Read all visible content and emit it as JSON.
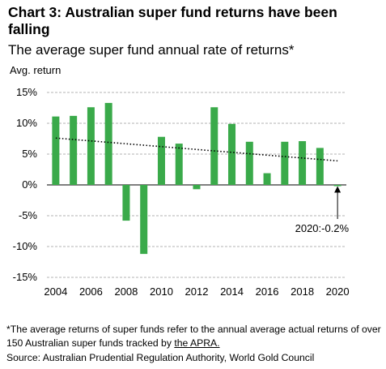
{
  "header": {
    "title": "Chart 3: Australian super fund returns have been falling",
    "subtitle": "The average super fund annual rate of returns*"
  },
  "footer": {
    "note_prefix": "*The average returns of super funds refer to the annual average actual returns of over 150 Australian super funds tracked by ",
    "note_link": "the APRA.",
    "source": "Source: Australian Prudential Regulation Authority, World Gold Council"
  },
  "chart_data": {
    "type": "bar",
    "ylabel": "Avg. return",
    "xlabel": "",
    "categories": [
      "2004",
      "2005",
      "2006",
      "2007",
      "2008",
      "2009",
      "2010",
      "2011",
      "2012",
      "2013",
      "2014",
      "2015",
      "2016",
      "2017",
      "2018",
      "2019",
      "2020"
    ],
    "values": [
      11.1,
      11.2,
      12.6,
      13.3,
      -5.8,
      -11.2,
      7.8,
      6.7,
      -0.7,
      12.6,
      9.9,
      7.0,
      1.9,
      7.0,
      7.1,
      6.0,
      -0.2
    ],
    "ylim": [
      -15,
      15
    ],
    "yticks": [
      15,
      10,
      5,
      0,
      -5,
      -10,
      -15
    ],
    "ytick_labels": [
      "15%",
      "10%",
      "5%",
      "0%",
      "-5%",
      "-10%",
      "-15%"
    ],
    "xtick_labels": [
      "2004",
      "2006",
      "2008",
      "2010",
      "2012",
      "2014",
      "2016",
      "2018",
      "2020"
    ],
    "trendline": {
      "style": "dotted",
      "start": 7.6,
      "end": 3.9
    },
    "grid": "horizontal dashed",
    "bar_color": "#3aaa4a",
    "annotation": {
      "text": "2020:-0.2%",
      "target": "2020"
    }
  }
}
